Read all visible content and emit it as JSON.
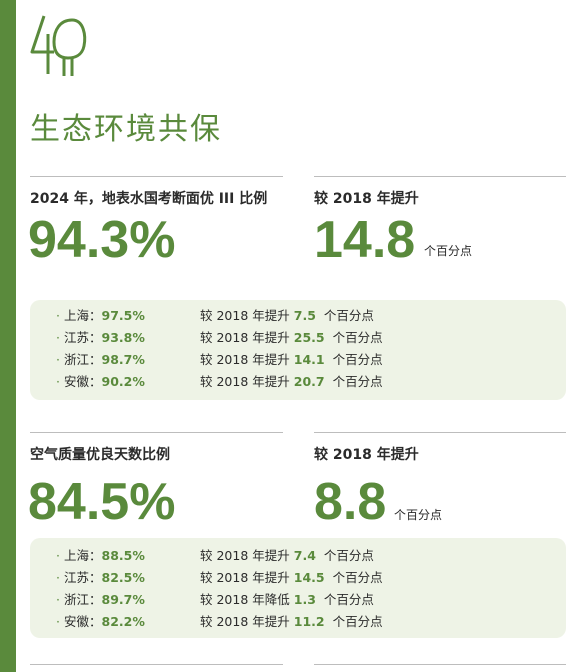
{
  "page_title": "生态环境共保",
  "colors": {
    "accent": "#5a8a3c",
    "panel": "#eef3e6",
    "text": "#2b2b2b"
  },
  "sections": [
    {
      "label": "2024 年，地表水国考断面优 III 比例",
      "value": "94.3%",
      "compare_label": "较 2018 年提升",
      "compare_value": "14.8",
      "compare_unit": "个百分点",
      "rows": [
        {
          "region": "上海：",
          "value": "97.5%",
          "change_text": "较 2018 年提升",
          "change_num": "7.5",
          "unit": "个百分点"
        },
        {
          "region": "江苏：",
          "value": "93.8%",
          "change_text": "较 2018 年提升",
          "change_num": "25.5",
          "unit": "个百分点"
        },
        {
          "region": "浙江：",
          "value": "98.7%",
          "change_text": "较 2018 年提升",
          "change_num": "14.1",
          "unit": "个百分点"
        },
        {
          "region": "安徽：",
          "value": "90.2%",
          "change_text": "较 2018 年提升",
          "change_num": "20.7",
          "unit": "个百分点"
        }
      ]
    },
    {
      "label": "空气质量优良天数比例",
      "value": "84.5%",
      "compare_label": "较 2018 年提升",
      "compare_value": "8.8",
      "compare_unit": "个百分点",
      "rows": [
        {
          "region": "上海：",
          "value": "88.5%",
          "change_text": "较 2018 年提升",
          "change_num": "7.4",
          "unit": "个百分点"
        },
        {
          "region": "江苏：",
          "value": "82.5%",
          "change_text": "较 2018 年提升",
          "change_num": "14.5",
          "unit": "个百分点"
        },
        {
          "region": "浙江：",
          "value": "89.7%",
          "change_text": "较 2018 年降低",
          "change_num": "1.3",
          "unit": "个百分点"
        },
        {
          "region": "安徽：",
          "value": "82.2%",
          "change_text": "较 2018 年提升",
          "change_num": "11.2",
          "unit": "个百分点"
        }
      ]
    }
  ]
}
